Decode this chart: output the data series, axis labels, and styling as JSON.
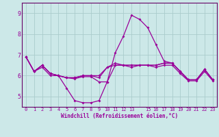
{
  "xlabel": "Windchill (Refroidissement éolien,°C)",
  "background_color": "#cce8e8",
  "grid_color": "#aacccc",
  "line_color": "#990099",
  "spine_color": "#660066",
  "xlim": [
    -0.5,
    23.5
  ],
  "ylim": [
    4.5,
    9.5
  ],
  "yticks": [
    5,
    6,
    7,
    8,
    9
  ],
  "xtick_labels": [
    "0",
    "1",
    "2",
    "3",
    "4",
    "5",
    "6",
    "7",
    "8",
    "9",
    "10",
    "11",
    "12",
    "13",
    "",
    "15",
    "16",
    "17",
    "18",
    "19",
    "20",
    "21",
    "22",
    "23"
  ],
  "curves": [
    [
      6.9,
      6.2,
      6.5,
      6.1,
      6.0,
      5.9,
      5.9,
      6.0,
      6.0,
      5.9,
      6.4,
      6.5,
      6.5,
      6.5,
      6.5,
      6.5,
      6.5,
      6.6,
      6.6,
      6.2,
      5.8,
      5.8,
      6.3,
      5.8
    ],
    [
      6.9,
      6.2,
      6.5,
      6.1,
      6.0,
      5.4,
      4.8,
      4.7,
      4.7,
      4.8,
      5.7,
      7.1,
      7.9,
      8.9,
      8.7,
      8.3,
      7.5,
      6.7,
      6.6,
      6.2,
      5.8,
      5.8,
      6.3,
      5.8
    ],
    [
      6.9,
      6.2,
      6.4,
      6.0,
      6.0,
      5.9,
      5.85,
      5.95,
      5.95,
      5.7,
      5.7,
      6.5,
      6.5,
      6.4,
      6.5,
      6.5,
      6.4,
      6.5,
      6.5,
      6.1,
      5.75,
      5.75,
      6.2,
      5.75
    ],
    [
      6.9,
      6.2,
      6.5,
      6.1,
      6.0,
      5.9,
      5.9,
      6.0,
      6.0,
      6.0,
      6.4,
      6.6,
      6.5,
      6.5,
      6.5,
      6.5,
      6.5,
      6.6,
      6.6,
      6.2,
      5.8,
      5.8,
      6.3,
      5.8
    ]
  ]
}
